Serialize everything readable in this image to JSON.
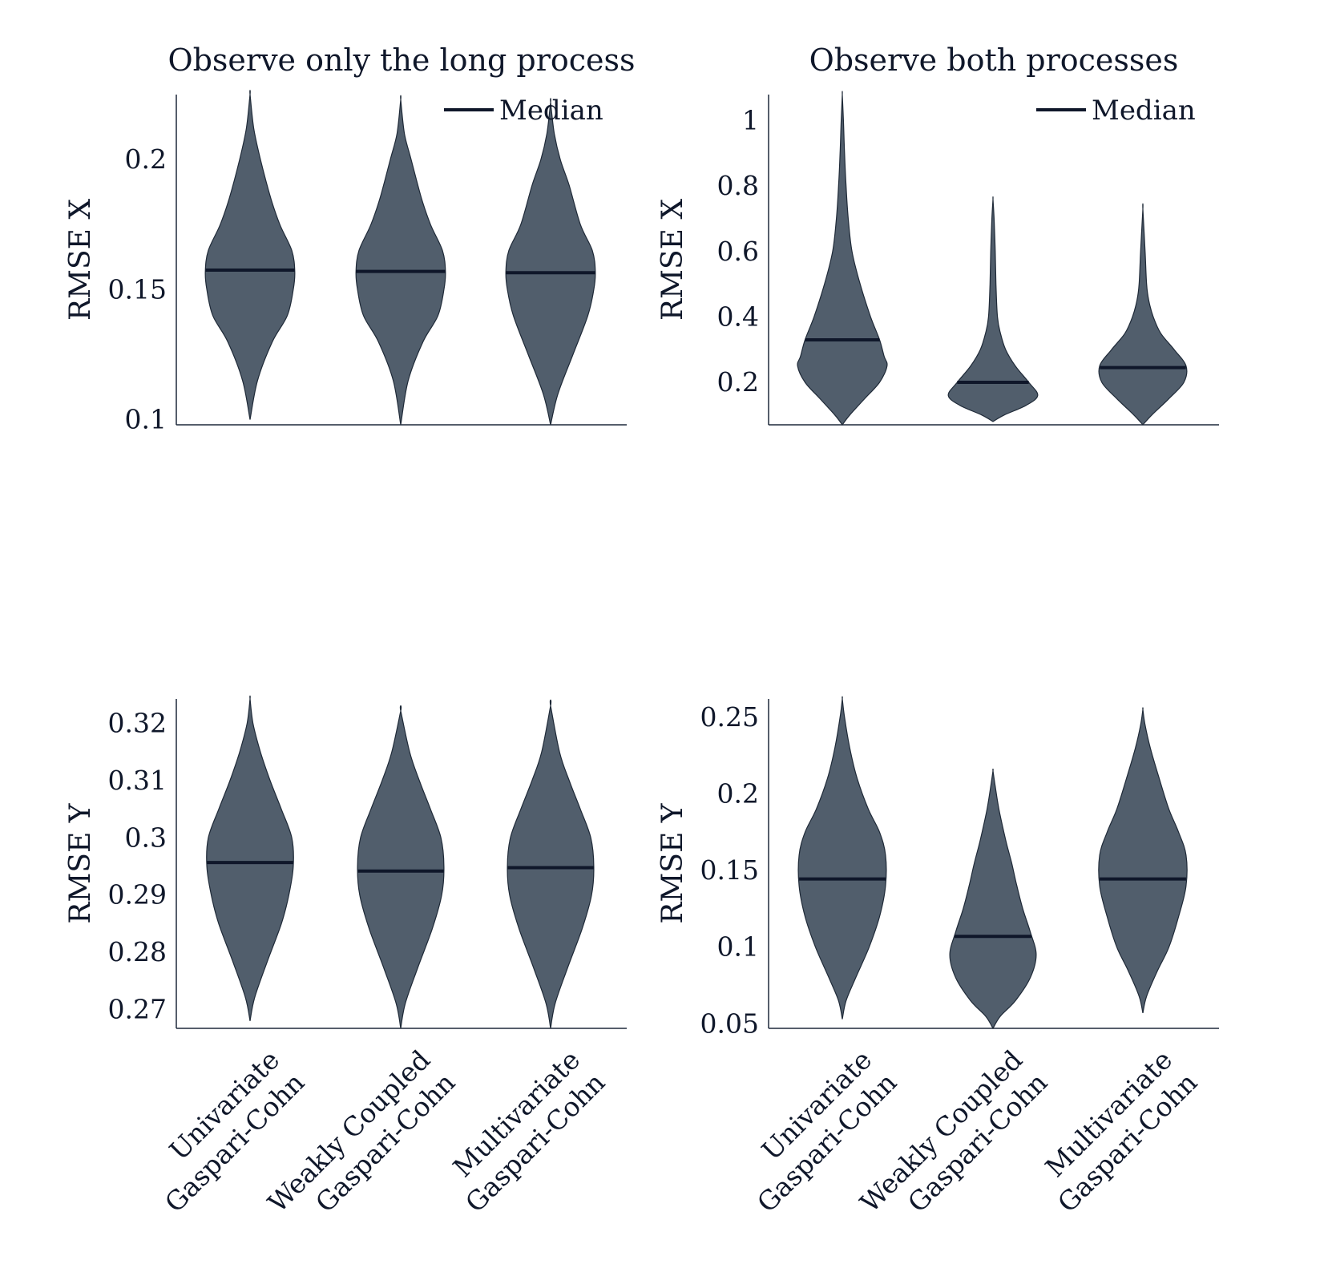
{
  "colors": {
    "violin_fill": "#515e6c",
    "violin_stroke": "#1f2a38",
    "median": "#0f172a",
    "axis": "#1e293b",
    "text": "#0f172a"
  },
  "categories": [
    {
      "line1": "Univariate",
      "line2": "Gaspari-Cohn"
    },
    {
      "line1": "Weakly Coupled",
      "line2": "Gaspari-Cohn"
    },
    {
      "line1": "Multivariate",
      "line2": "Gaspari-Cohn"
    }
  ],
  "legend": {
    "median": "Median"
  },
  "chart_data": [
    {
      "type": "violin",
      "title": "Observe only the long process",
      "ylabel": "RMSE X",
      "ylim": [
        0.098,
        0.225
      ],
      "yticks": [
        "0.1",
        "0.15",
        "0.2"
      ],
      "legend": "top-right",
      "series": [
        {
          "category": "Univariate Gaspari-Cohn",
          "median": 0.1575,
          "min": 0.1,
          "max": 0.225,
          "profile": [
            [
              0.1,
              0.0
            ],
            [
              0.115,
              0.1
            ],
            [
              0.13,
              0.3
            ],
            [
              0.14,
              0.5
            ],
            [
              0.15,
              0.58
            ],
            [
              0.157,
              0.6
            ],
            [
              0.165,
              0.56
            ],
            [
              0.175,
              0.4
            ],
            [
              0.185,
              0.28
            ],
            [
              0.2,
              0.14
            ],
            [
              0.212,
              0.05
            ],
            [
              0.225,
              0.0
            ]
          ]
        },
        {
          "category": "Weakly Coupled Gaspari-Cohn",
          "median": 0.157,
          "min": 0.098,
          "max": 0.223,
          "profile": [
            [
              0.098,
              0.0
            ],
            [
              0.115,
              0.1
            ],
            [
              0.13,
              0.3
            ],
            [
              0.14,
              0.5
            ],
            [
              0.15,
              0.58
            ],
            [
              0.157,
              0.6
            ],
            [
              0.165,
              0.56
            ],
            [
              0.175,
              0.4
            ],
            [
              0.185,
              0.28
            ],
            [
              0.2,
              0.14
            ],
            [
              0.21,
              0.05
            ],
            [
              0.223,
              0.0
            ]
          ]
        },
        {
          "category": "Multivariate Gaspari-Cohn",
          "median": 0.1565,
          "min": 0.098,
          "max": 0.222,
          "profile": [
            [
              0.098,
              0.0
            ],
            [
              0.11,
              0.1
            ],
            [
              0.125,
              0.3
            ],
            [
              0.14,
              0.5
            ],
            [
              0.15,
              0.58
            ],
            [
              0.157,
              0.6
            ],
            [
              0.165,
              0.56
            ],
            [
              0.175,
              0.4
            ],
            [
              0.19,
              0.25
            ],
            [
              0.2,
              0.13
            ],
            [
              0.21,
              0.05
            ],
            [
              0.222,
              0.0
            ]
          ]
        }
      ]
    },
    {
      "type": "violin",
      "title": "Observe both processes",
      "ylabel": "RMSE X",
      "ylim": [
        0.07,
        1.08
      ],
      "yticks": [
        "0.2",
        "0.4",
        "0.6",
        "0.8",
        "1"
      ],
      "legend": "top-right",
      "series": [
        {
          "category": "Univariate Gaspari-Cohn",
          "median": 0.33,
          "min": 0.07,
          "max": 1.08,
          "profile": [
            [
              0.07,
              0.0
            ],
            [
              0.1,
              0.1
            ],
            [
              0.15,
              0.3
            ],
            [
              0.2,
              0.5
            ],
            [
              0.25,
              0.6
            ],
            [
              0.28,
              0.56
            ],
            [
              0.33,
              0.5
            ],
            [
              0.4,
              0.38
            ],
            [
              0.5,
              0.24
            ],
            [
              0.6,
              0.13
            ],
            [
              0.7,
              0.08
            ],
            [
              0.8,
              0.05
            ],
            [
              0.9,
              0.03
            ],
            [
              1.0,
              0.015
            ],
            [
              1.08,
              0.0
            ]
          ]
        },
        {
          "category": "Weakly Coupled Gaspari-Cohn",
          "median": 0.2,
          "min": 0.08,
          "max": 0.76,
          "profile": [
            [
              0.08,
              0.0
            ],
            [
              0.1,
              0.15
            ],
            [
              0.13,
              0.45
            ],
            [
              0.16,
              0.6
            ],
            [
              0.2,
              0.48
            ],
            [
              0.25,
              0.3
            ],
            [
              0.3,
              0.17
            ],
            [
              0.35,
              0.1
            ],
            [
              0.4,
              0.06
            ],
            [
              0.5,
              0.04
            ],
            [
              0.6,
              0.03
            ],
            [
              0.7,
              0.015
            ],
            [
              0.76,
              0.0
            ]
          ]
        },
        {
          "category": "Multivariate Gaspari-Cohn",
          "median": 0.245,
          "min": 0.07,
          "max": 0.73,
          "profile": [
            [
              0.07,
              0.0
            ],
            [
              0.1,
              0.12
            ],
            [
              0.15,
              0.35
            ],
            [
              0.2,
              0.55
            ],
            [
              0.25,
              0.58
            ],
            [
              0.3,
              0.42
            ],
            [
              0.35,
              0.24
            ],
            [
              0.4,
              0.14
            ],
            [
              0.45,
              0.08
            ],
            [
              0.5,
              0.05
            ],
            [
              0.6,
              0.03
            ],
            [
              0.73,
              0.0
            ]
          ]
        }
      ]
    },
    {
      "type": "violin",
      "title": "",
      "ylabel": "RMSE Y",
      "ylim": [
        0.2667,
        0.3243
      ],
      "yticks": [
        "0.27",
        "0.28",
        "0.29",
        "0.3",
        "0.31",
        "0.32"
      ],
      "legend": "none",
      "series": [
        {
          "category": "Univariate Gaspari-Cohn",
          "median": 0.2957,
          "min": 0.268,
          "max": 0.3243,
          "profile": [
            [
              0.268,
              0.0
            ],
            [
              0.272,
              0.06
            ],
            [
              0.278,
              0.22
            ],
            [
              0.285,
              0.42
            ],
            [
              0.29,
              0.52
            ],
            [
              0.295,
              0.58
            ],
            [
              0.3,
              0.56
            ],
            [
              0.305,
              0.42
            ],
            [
              0.31,
              0.27
            ],
            [
              0.315,
              0.14
            ],
            [
              0.32,
              0.04
            ],
            [
              0.3243,
              0.0
            ]
          ]
        },
        {
          "category": "Weakly Coupled Gaspari-Cohn",
          "median": 0.2942,
          "min": 0.2667,
          "max": 0.3222,
          "profile": [
            [
              0.2667,
              0.0
            ],
            [
              0.271,
              0.06
            ],
            [
              0.277,
              0.22
            ],
            [
              0.284,
              0.42
            ],
            [
              0.29,
              0.55
            ],
            [
              0.295,
              0.58
            ],
            [
              0.3,
              0.54
            ],
            [
              0.305,
              0.4
            ],
            [
              0.31,
              0.25
            ],
            [
              0.315,
              0.12
            ],
            [
              0.3222,
              0.0
            ]
          ]
        },
        {
          "category": "Multivariate Gaspari-Cohn",
          "median": 0.2948,
          "min": 0.2667,
          "max": 0.3231,
          "profile": [
            [
              0.2667,
              0.0
            ],
            [
              0.271,
              0.06
            ],
            [
              0.277,
              0.22
            ],
            [
              0.284,
              0.42
            ],
            [
              0.29,
              0.55
            ],
            [
              0.295,
              0.58
            ],
            [
              0.3,
              0.54
            ],
            [
              0.305,
              0.4
            ],
            [
              0.31,
              0.25
            ],
            [
              0.315,
              0.12
            ],
            [
              0.3231,
              0.0
            ]
          ]
        }
      ]
    },
    {
      "type": "violin",
      "title": "",
      "ylabel": "RMSE Y",
      "ylim": [
        0.047,
        0.262
      ],
      "yticks": [
        "0.05",
        "0.1",
        "0.15",
        "0.2",
        "0.25"
      ],
      "legend": "none",
      "series": [
        {
          "category": "Univariate Gaspari-Cohn",
          "median": 0.1445,
          "min": 0.053,
          "max": 0.262,
          "profile": [
            [
              0.053,
              0.0
            ],
            [
              0.065,
              0.05
            ],
            [
              0.08,
              0.18
            ],
            [
              0.1,
              0.36
            ],
            [
              0.12,
              0.5
            ],
            [
              0.14,
              0.58
            ],
            [
              0.16,
              0.58
            ],
            [
              0.175,
              0.5
            ],
            [
              0.19,
              0.35
            ],
            [
              0.21,
              0.2
            ],
            [
              0.23,
              0.1
            ],
            [
              0.25,
              0.03
            ],
            [
              0.262,
              0.0
            ]
          ]
        },
        {
          "category": "Weakly Coupled Gaspari-Cohn",
          "median": 0.107,
          "min": 0.047,
          "max": 0.215,
          "profile": [
            [
              0.047,
              0.0
            ],
            [
              0.055,
              0.1
            ],
            [
              0.065,
              0.3
            ],
            [
              0.08,
              0.5
            ],
            [
              0.095,
              0.58
            ],
            [
              0.11,
              0.5
            ],
            [
              0.125,
              0.4
            ],
            [
              0.14,
              0.32
            ],
            [
              0.155,
              0.25
            ],
            [
              0.17,
              0.17
            ],
            [
              0.19,
              0.08
            ],
            [
              0.205,
              0.03
            ],
            [
              0.215,
              0.0
            ]
          ]
        },
        {
          "category": "Multivariate Gaspari-Cohn",
          "median": 0.1445,
          "min": 0.057,
          "max": 0.255,
          "profile": [
            [
              0.057,
              0.0
            ],
            [
              0.068,
              0.05
            ],
            [
              0.085,
              0.2
            ],
            [
              0.1,
              0.35
            ],
            [
              0.12,
              0.48
            ],
            [
              0.14,
              0.58
            ],
            [
              0.16,
              0.58
            ],
            [
              0.175,
              0.48
            ],
            [
              0.19,
              0.35
            ],
            [
              0.21,
              0.22
            ],
            [
              0.23,
              0.1
            ],
            [
              0.245,
              0.03
            ],
            [
              0.255,
              0.0
            ]
          ]
        }
      ]
    }
  ]
}
